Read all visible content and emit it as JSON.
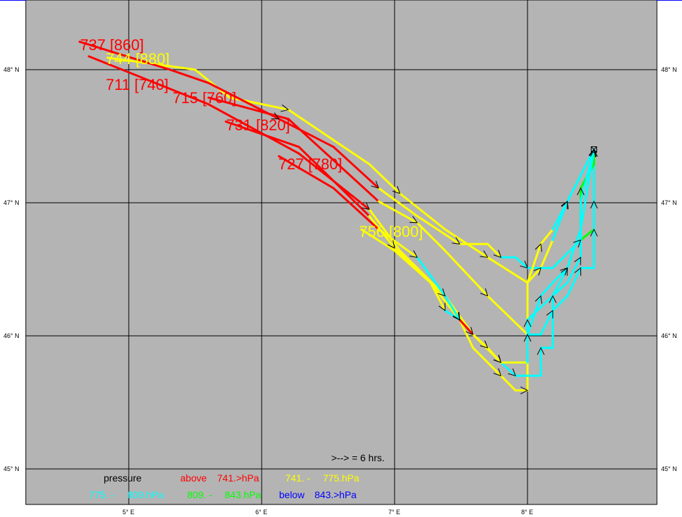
{
  "colors": {
    "r": "#ff0000",
    "y": "#ffff00",
    "c": "#00ffff",
    "g": "#00ff00",
    "b": "#0000ff",
    "background": "#b4b4b4"
  },
  "axes": {
    "lat_labels": [
      "48° N",
      "47° N",
      "46° N",
      "45° N"
    ],
    "lon_labels": [
      "5° E",
      "6° E",
      "7° E",
      "8° E"
    ],
    "lats": [
      48,
      47,
      46,
      45
    ],
    "lons": [
      5,
      6,
      7,
      8
    ]
  },
  "source": {
    "lon": 8.5,
    "lat": 47.4,
    "icon": "source-marker-icon"
  },
  "trajectory_labels": [
    "737 [860]",
    "744 [880]",
    "711 [740]",
    "715 [760]",
    "731 [820]",
    "727 [780]",
    "756 [800]"
  ],
  "trajectory_label_colors": [
    "r",
    "y",
    "r",
    "r",
    "r",
    "r",
    "y"
  ],
  "trajectories": [
    [
      [
        4.84,
        48.09
      ],
      [
        5.5,
        48.0,
        "y"
      ],
      [
        5.76,
        47.79,
        "y"
      ],
      [
        6.2,
        47.7,
        "y"
      ],
      [
        6.81,
        47.29,
        "y"
      ],
      [
        7.04,
        47.07,
        "y"
      ],
      [
        7.38,
        46.8,
        "y"
      ],
      [
        7.7,
        46.59,
        "y"
      ],
      [
        8.0,
        46.4,
        "y"
      ],
      [
        8.1,
        46.51,
        "y"
      ],
      [
        8.19,
        46.72,
        "y"
      ],
      [
        8.3,
        47.01,
        "c"
      ],
      [
        8.5,
        47.4,
        "c"
      ]
    ],
    [
      [
        4.63,
        48.21
      ],
      [
        5.31,
        48.0,
        "r"
      ],
      [
        5.6,
        47.9,
        "r"
      ],
      [
        6.13,
        47.63,
        "r"
      ],
      [
        6.54,
        47.42,
        "r"
      ],
      [
        6.88,
        47.11,
        "r"
      ],
      [
        7.17,
        46.9,
        "y"
      ],
      [
        7.49,
        46.69,
        "y"
      ],
      [
        7.7,
        46.69,
        "y"
      ],
      [
        7.8,
        46.59,
        "y"
      ],
      [
        7.91,
        46.59,
        "c"
      ],
      [
        8.0,
        46.51,
        "c"
      ],
      [
        8.19,
        46.51,
        "c"
      ],
      [
        8.4,
        46.72,
        "c"
      ],
      [
        8.5,
        46.8,
        "g"
      ],
      [
        8.5,
        47.01,
        "g"
      ],
      [
        8.5,
        47.4,
        "b"
      ]
    ],
    [
      [
        4.7,
        48.1
      ],
      [
        5.6,
        47.74,
        "r"
      ],
      [
        6.28,
        47.37,
        "r"
      ],
      [
        6.81,
        46.95,
        "r"
      ],
      [
        7.04,
        46.64,
        "y"
      ],
      [
        7.38,
        46.3,
        "y"
      ],
      [
        7.59,
        46.01,
        "y"
      ],
      [
        7.8,
        45.8,
        "y"
      ],
      [
        8.0,
        45.8,
        "c"
      ],
      [
        8.0,
        46.01,
        "c"
      ],
      [
        8.1,
        46.01,
        "c"
      ],
      [
        8.19,
        46.19,
        "c"
      ],
      [
        8.3,
        46.3,
        "c"
      ],
      [
        8.4,
        46.51,
        "c"
      ],
      [
        8.5,
        46.51,
        "c"
      ],
      [
        8.5,
        46.8,
        "c"
      ],
      [
        8.5,
        47.4,
        "c"
      ]
    ],
    [
      [
        5.6,
        47.79
      ],
      [
        6.2,
        47.63,
        "r"
      ],
      [
        6.88,
        47.01,
        "r"
      ],
      [
        7.17,
        46.85,
        "y"
      ],
      [
        7.38,
        46.64,
        "y"
      ],
      [
        7.7,
        46.3,
        "y"
      ],
      [
        8.0,
        46.01,
        "y"
      ],
      [
        8.1,
        46.3,
        "c"
      ],
      [
        8.19,
        46.4,
        "c"
      ],
      [
        8.3,
        46.51,
        "c"
      ],
      [
        8.4,
        46.8,
        "c"
      ],
      [
        8.4,
        47.11,
        "g"
      ],
      [
        8.5,
        47.29,
        "g"
      ],
      [
        8.5,
        47.4,
        "g"
      ]
    ],
    [
      [
        5.73,
        47.61
      ],
      [
        6.28,
        47.42,
        "r"
      ],
      [
        6.81,
        46.9,
        "r"
      ],
      [
        7.0,
        46.66,
        "y"
      ],
      [
        7.27,
        46.4,
        "y"
      ],
      [
        7.49,
        46.12,
        "y"
      ],
      [
        7.59,
        45.91,
        "y"
      ],
      [
        7.8,
        45.7,
        "y"
      ],
      [
        7.91,
        45.59,
        "y"
      ],
      [
        8.0,
        45.59,
        "y"
      ],
      [
        8.0,
        46.4,
        "y"
      ],
      [
        8.1,
        46.69,
        "y"
      ],
      [
        8.19,
        46.8,
        "y"
      ],
      [
        8.3,
        47.01,
        "c"
      ],
      [
        8.5,
        47.4,
        "c"
      ]
    ],
    [
      [
        6.13,
        47.35
      ],
      [
        6.54,
        47.11,
        "r"
      ],
      [
        6.88,
        46.8,
        "r"
      ],
      [
        7.17,
        46.59,
        "y"
      ],
      [
        7.38,
        46.3,
        "c"
      ],
      [
        7.49,
        46.12,
        "c"
      ],
      [
        7.59,
        46.01,
        "c"
      ],
      [
        7.7,
        45.91,
        "y"
      ],
      [
        7.8,
        45.8,
        "y"
      ],
      [
        7.91,
        45.7,
        "c"
      ],
      [
        8.1,
        45.7,
        "c"
      ],
      [
        8.1,
        45.91,
        "c"
      ],
      [
        8.19,
        45.91,
        "c"
      ],
      [
        8.19,
        46.3,
        "c"
      ],
      [
        8.3,
        46.4,
        "c"
      ],
      [
        8.4,
        46.59,
        "c"
      ],
      [
        8.4,
        47.01,
        "c"
      ],
      [
        8.5,
        47.4,
        "c"
      ]
    ],
    [
      [
        6.75,
        46.8
      ],
      [
        7.0,
        46.64,
        "y"
      ],
      [
        7.27,
        46.4,
        "y"
      ],
      [
        7.38,
        46.19,
        "y"
      ],
      [
        7.49,
        46.12,
        "c"
      ],
      [
        7.59,
        46.01,
        "r"
      ],
      [
        7.7,
        45.91,
        "y"
      ],
      [
        7.8,
        45.8,
        "y"
      ],
      [
        8.0,
        45.8,
        "y"
      ],
      [
        8.0,
        46.12,
        "c"
      ],
      [
        8.19,
        46.3,
        "c"
      ],
      [
        8.3,
        46.51,
        "c"
      ],
      [
        8.4,
        46.8,
        "c"
      ],
      [
        8.5,
        47.4,
        "c"
      ]
    ]
  ],
  "time_legend": ">--> =  6 hrs.",
  "legend": {
    "title": "pressure",
    "above_label": "above",
    "above_value": "741.>hPa",
    "yellow_from": "741. -",
    "yellow_to": "775.hPa",
    "cyan_from": "775. -",
    "cyan_to": "809.hPa",
    "green_from": "809. -",
    "green_to": "843.hPa",
    "below_label": "below",
    "below_value": "843.>hPa"
  }
}
